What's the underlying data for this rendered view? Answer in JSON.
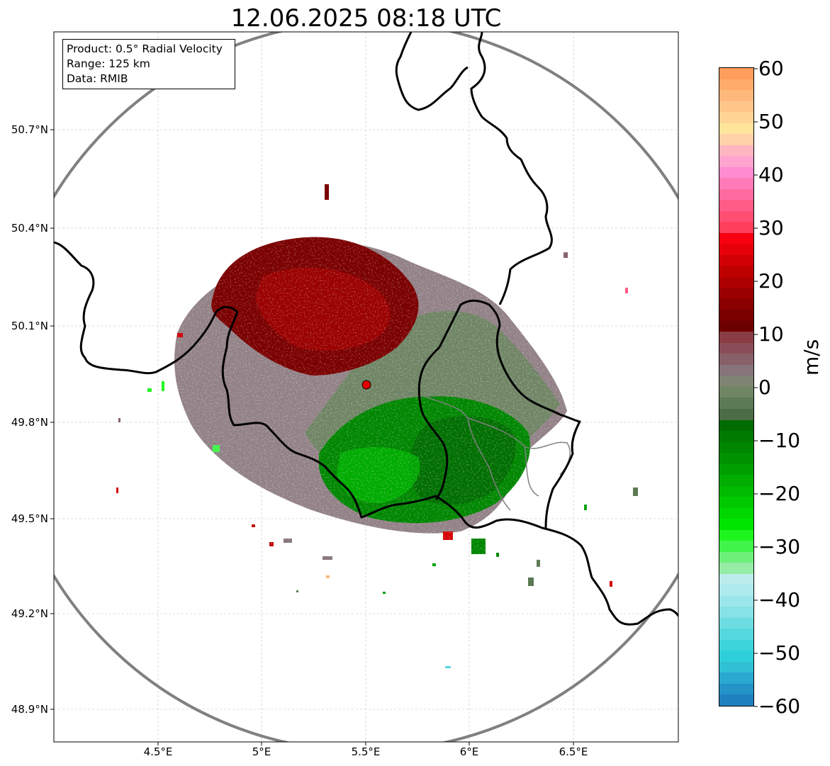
{
  "title": "12.06.2025 08:18 UTC",
  "info_box": {
    "product": "Product: 0.5° Radial Velocity",
    "range": "Range: 125 km",
    "data": "Data: RMIB"
  },
  "axes": {
    "lat_labels": [
      "50.7°N",
      "50.4°N",
      "50.1°N",
      "49.8°N",
      "49.5°N",
      "49.2°N",
      "48.9°N"
    ],
    "lon_labels": [
      "4.5°E",
      "5°E",
      "5.5°E",
      "6°E",
      "6.5°E"
    ]
  },
  "colorbar": {
    "unit": "m/s",
    "ticks": [
      "60",
      "50",
      "40",
      "30",
      "20",
      "10",
      "0",
      "−10",
      "−20",
      "−30",
      "−40",
      "−50",
      "−60"
    ],
    "colors_top_to_bottom": [
      "#ff9e5c",
      "#ffab6c",
      "#ffb87c",
      "#ffc589",
      "#ffd494",
      "#ffe59c",
      "#ffd2a8",
      "#ffb6c0",
      "#ffa3cf",
      "#ff8bd0",
      "#ff7ab8",
      "#ff6aa0",
      "#ff5c88",
      "#ff4e72",
      "#ff3f5c",
      "#f70010",
      "#e60008",
      "#d20004",
      "#bf0000",
      "#ad0000",
      "#9b0000",
      "#8a0000",
      "#7a0000",
      "#6d0000",
      "#8a3c44",
      "#8a4d58",
      "#876069",
      "#86747a",
      "#7e8472",
      "#6f8563",
      "#5c7a54",
      "#4c6c45",
      "#006b00",
      "#007a00",
      "#008600",
      "#009200",
      "#009f00",
      "#00ad00",
      "#00bb00",
      "#00c900",
      "#00d700",
      "#00e500",
      "#1ef51e",
      "#40f44a",
      "#6df07a",
      "#95eda5",
      "#bdecec",
      "#aeeaee",
      "#9be6ea",
      "#85e2e6",
      "#6ddde2",
      "#55d8de",
      "#3dd4dc",
      "#2ecfda",
      "#2fc0d6",
      "#2aa8d0",
      "#2393c8",
      "#1f80c0"
    ]
  },
  "map": {
    "radar_site_color": "#e00000",
    "range_ring_color": "#808080",
    "border_color": "#000000",
    "inbound_color": "#008a00",
    "outbound_color": "#8a0000",
    "near_zero_color": "#86747a"
  }
}
